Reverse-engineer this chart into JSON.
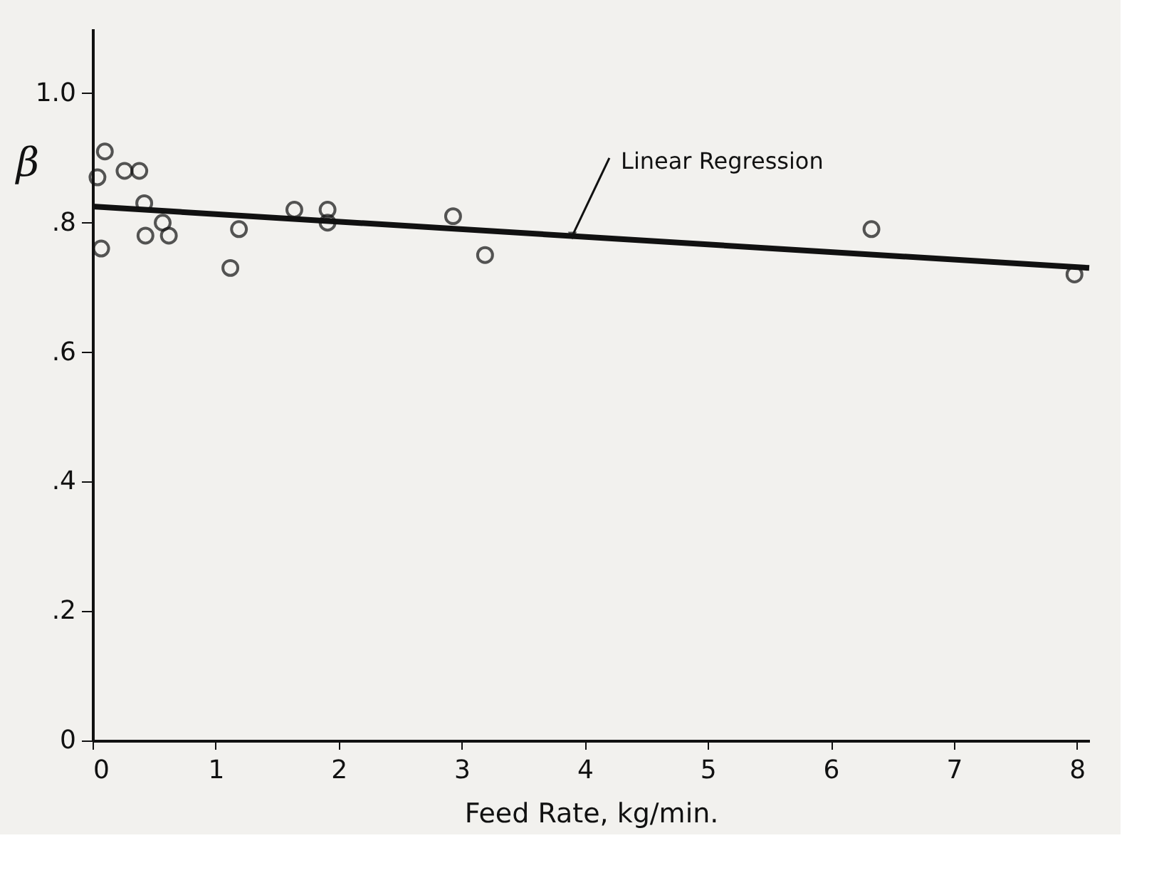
{
  "chart_data": {
    "type": "scatter",
    "xlabel": "Feed Rate, kg/min.",
    "ylabel": "β",
    "xlim": [
      0,
      8.1
    ],
    "ylim": [
      0,
      1.1
    ],
    "xticks": [
      0,
      1,
      2,
      3,
      4,
      5,
      6,
      7,
      8
    ],
    "yticks": [
      0,
      {
        "value": 0.2,
        "label": ".2"
      },
      {
        "value": 0.4,
        "label": ".4"
      },
      {
        "value": 0.6,
        "label": ".6"
      },
      {
        "value": 0.8,
        "label": ".8"
      },
      {
        "value": 1.0,
        "label": "1.0"
      }
    ],
    "grid": false,
    "legend": false,
    "series": [
      {
        "type": "scatter",
        "marker": "circle",
        "color": "#111111",
        "x": [
          0.04,
          0.1,
          0.07,
          0.26,
          0.38,
          0.42,
          0.43,
          0.57,
          0.62,
          1.12,
          1.19,
          1.64,
          1.91,
          1.91,
          2.93,
          3.19,
          6.33,
          7.98
        ],
        "values": [
          0.87,
          0.91,
          0.76,
          0.88,
          0.88,
          0.83,
          0.78,
          0.8,
          0.78,
          0.73,
          0.79,
          0.82,
          0.82,
          0.8,
          0.81,
          0.75,
          0.79,
          0.72
        ]
      },
      {
        "type": "line",
        "marker": "none",
        "line_style": "solid",
        "color": "#111111",
        "x": [
          0,
          8.1
        ],
        "values": [
          0.825,
          0.73
        ]
      }
    ],
    "annotations": [
      {
        "text": "Linear Regression",
        "x": 3.9,
        "y": 0.78
      }
    ]
  }
}
